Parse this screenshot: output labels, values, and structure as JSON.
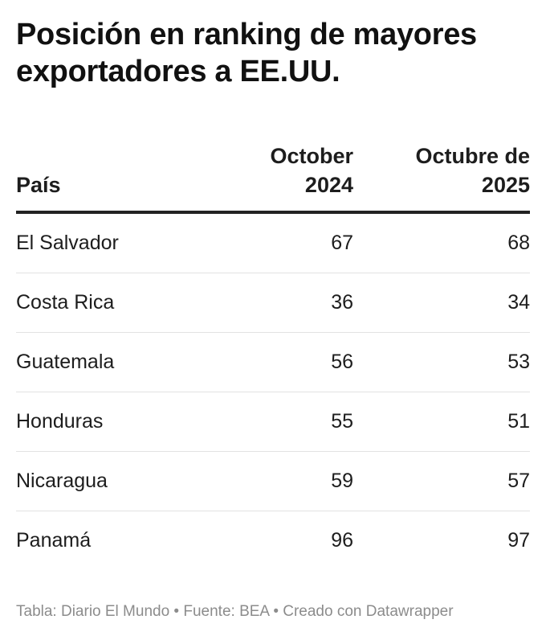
{
  "title": "Posición en ranking de mayores exportadores a EE.UU.",
  "chart_data": {
    "type": "table",
    "columns": [
      "País",
      "October 2024",
      "Octubre de 2025"
    ],
    "rows": [
      [
        "El Salvador",
        "67",
        "68"
      ],
      [
        "Costa Rica",
        "36",
        "34"
      ],
      [
        "Guatemala",
        "56",
        "53"
      ],
      [
        "Honduras",
        "55",
        "51"
      ],
      [
        "Nicaragua",
        "59",
        "57"
      ],
      [
        "Panamá",
        "96",
        "97"
      ]
    ]
  },
  "footer": "Tabla: Diario El Mundo • Fuente: BEA • Creado con Datawrapper"
}
